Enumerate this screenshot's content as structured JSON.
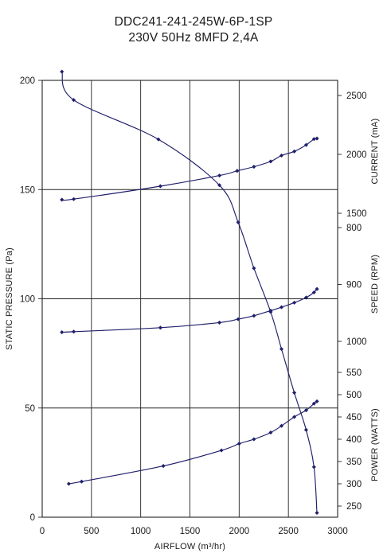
{
  "title": {
    "line1": "DDC241-241-245W-6P-1SP",
    "line2": "230V 50Hz 8MFD 2,4A"
  },
  "chart_data": {
    "type": "line",
    "title": "DDC241-241-245W-6P-1SP 230V 50Hz 8MFD 2,4A",
    "xlabel": "AIRFLOW (m³/hr)",
    "xlim": [
      0,
      3000
    ],
    "x_ticks": [
      "0",
      "500",
      "1000",
      "1500",
      "2000",
      "2500",
      "3000"
    ],
    "grid": true,
    "axes": {
      "pressure": {
        "label": "STATIC PRESSURE (Pa)",
        "side": "left",
        "ylim": [
          0,
          200
        ],
        "ticks": [
          "0",
          "50",
          "100",
          "150",
          "200"
        ]
      },
      "current": {
        "label": "CURRENT (mA)",
        "side": "right-top",
        "range": [
          1500,
          2500
        ],
        "ticks": [
          "1500",
          "2000",
          "2500"
        ]
      },
      "speed": {
        "label": "SPEED (RPM)",
        "side": "right-middle",
        "range": [
          800,
          1000
        ],
        "ticks": [
          "800",
          "900",
          "1000"
        ]
      },
      "power": {
        "label": "POWER (WATTS)",
        "side": "right-bottom",
        "range": [
          250,
          550
        ],
        "ticks": [
          "250",
          "300",
          "350",
          "400",
          "450",
          "500",
          "550"
        ]
      }
    },
    "series": [
      {
        "axis": "pressure",
        "points": [
          [
            200,
            204
          ],
          [
            320,
            191
          ],
          [
            1180,
            173
          ],
          [
            1800,
            152
          ],
          [
            1990,
            135
          ],
          [
            2150,
            114
          ],
          [
            2320,
            94
          ],
          [
            2430,
            77
          ],
          [
            2560,
            57
          ],
          [
            2680,
            40
          ],
          [
            2760,
            23
          ],
          [
            2790,
            2
          ]
        ]
      },
      {
        "axis": "current",
        "points": [
          [
            200,
            1615
          ],
          [
            320,
            1620
          ],
          [
            1200,
            1730
          ],
          [
            1800,
            1820
          ],
          [
            1980,
            1860
          ],
          [
            2150,
            1895
          ],
          [
            2320,
            1940
          ],
          [
            2430,
            1990
          ],
          [
            2560,
            2025
          ],
          [
            2680,
            2080
          ],
          [
            2760,
            2130
          ],
          [
            2790,
            2135
          ]
        ]
      },
      {
        "axis": "speed",
        "points": [
          [
            200,
            984
          ],
          [
            320,
            983
          ],
          [
            1200,
            976
          ],
          [
            1800,
            967
          ],
          [
            1990,
            961
          ],
          [
            2150,
            955
          ],
          [
            2320,
            946
          ],
          [
            2430,
            940
          ],
          [
            2560,
            932
          ],
          [
            2680,
            923
          ],
          [
            2760,
            914
          ],
          [
            2790,
            908
          ]
        ]
      },
      {
        "axis": "power",
        "points": [
          [
            270,
            300
          ],
          [
            400,
            305
          ],
          [
            1230,
            340
          ],
          [
            1820,
            375
          ],
          [
            2000,
            390
          ],
          [
            2150,
            400
          ],
          [
            2320,
            415
          ],
          [
            2430,
            430
          ],
          [
            2560,
            450
          ],
          [
            2680,
            465
          ],
          [
            2760,
            480
          ],
          [
            2790,
            485
          ]
        ]
      }
    ]
  }
}
